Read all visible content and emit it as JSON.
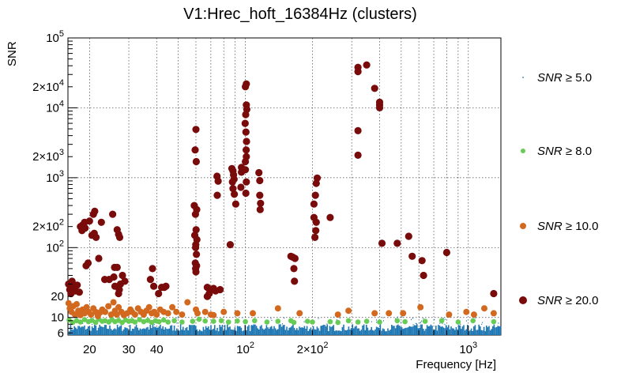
{
  "chart_data": {
    "type": "scatter",
    "title": "V1:Hrec_hoft_16384Hz (clusters)",
    "xlabel": "Frequency [Hz]",
    "ylabel": "SNR",
    "xscale": "log",
    "yscale": "log",
    "xlim": [
      16,
      1400
    ],
    "ylim": [
      5.6,
      100000
    ],
    "grid": true,
    "legend_position": "right",
    "x_tick_labels": [
      {
        "value": 20,
        "text": "20"
      },
      {
        "value": 30,
        "text": "30"
      },
      {
        "value": 40,
        "text": "40"
      },
      {
        "value": 100,
        "base": "10",
        "exp": "2"
      },
      {
        "value": 200,
        "coef": "2×10",
        "exp": "2"
      },
      {
        "value": 1000,
        "base": "10",
        "exp": "3"
      }
    ],
    "y_tick_labels": [
      {
        "value": 6,
        "text": "6"
      },
      {
        "value": 10,
        "text": "10"
      },
      {
        "value": 20,
        "text": "20"
      },
      {
        "value": 100,
        "base": "10",
        "exp": "2"
      },
      {
        "value": 200,
        "coef": "2×10",
        "exp": "2"
      },
      {
        "value": 1000,
        "base": "10",
        "exp": "3"
      },
      {
        "value": 2000,
        "coef": "2×10",
        "exp": "3"
      },
      {
        "value": 10000,
        "base": "10",
        "exp": "4"
      },
      {
        "value": 20000,
        "coef": "2×10",
        "exp": "4"
      },
      {
        "value": 100000,
        "base": "10",
        "exp": "5"
      }
    ],
    "series": [
      {
        "name": "SNR ≥ 5.0",
        "color": "#1f77b4",
        "marker": "dot",
        "x_range": [
          16,
          1400
        ],
        "y_range": [
          5.6,
          8.0
        ]
      },
      {
        "name": "SNR ≥ 8.0",
        "color": "#66cc55",
        "marker": "circle",
        "points": [
          [
            16.2,
            9.2
          ],
          [
            16.8,
            8.5
          ],
          [
            17.5,
            9.0
          ],
          [
            18.2,
            8.6
          ],
          [
            19.0,
            9.3
          ],
          [
            19.8,
            8.7
          ],
          [
            20.5,
            9.1
          ],
          [
            21.3,
            8.5
          ],
          [
            22.0,
            9.4
          ],
          [
            22.8,
            8.8
          ],
          [
            23.5,
            9.0
          ],
          [
            24.4,
            8.6
          ],
          [
            25.2,
            9.3
          ],
          [
            26.0,
            8.7
          ],
          [
            27.0,
            9.1
          ],
          [
            28.0,
            8.5
          ],
          [
            29.0,
            9.2
          ],
          [
            30.0,
            8.8
          ],
          [
            31.0,
            9.0
          ],
          [
            32.0,
            8.6
          ],
          [
            33.5,
            9.3
          ],
          [
            35.0,
            8.7
          ],
          [
            36.5,
            9.1
          ],
          [
            38.0,
            8.5
          ],
          [
            39.5,
            9.0
          ],
          [
            41.0,
            8.7
          ],
          [
            43.0,
            9.2
          ],
          [
            45.0,
            8.6
          ],
          [
            48.0,
            9.0
          ],
          [
            52.0,
            8.6
          ],
          [
            58.0,
            8.8
          ],
          [
            62.0,
            9.4
          ],
          [
            66.0,
            8.9
          ],
          [
            72.0,
            8.8
          ],
          [
            78.0,
            9.0
          ],
          [
            84.0,
            8.6
          ],
          [
            92.0,
            8.9
          ],
          [
            100.0,
            8.7
          ],
          [
            110.0,
            9.0
          ],
          [
            125.0,
            8.6
          ],
          [
            140.0,
            8.8
          ],
          [
            160.0,
            9.0
          ],
          [
            165.0,
            8.5
          ],
          [
            190.0,
            8.8
          ],
          [
            200.0,
            8.6
          ],
          [
            240.0,
            8.7
          ],
          [
            260.0,
            8.5
          ],
          [
            290.0,
            9.0
          ],
          [
            320.0,
            8.6
          ],
          [
            350.0,
            8.8
          ],
          [
            400.0,
            8.6
          ],
          [
            480.0,
            9.0
          ],
          [
            520.0,
            8.7
          ],
          [
            640.0,
            8.8
          ],
          [
            760.0,
            9.0
          ],
          [
            900.0,
            8.6
          ],
          [
            1050.0,
            9.0
          ],
          [
            1300.0,
            8.7
          ]
        ]
      },
      {
        "name": "SNR ≥ 10.0",
        "color": "#d2691e",
        "marker": "circle",
        "points": [
          [
            16.1,
            16.0
          ],
          [
            16.3,
            13.5
          ],
          [
            16.6,
            12.0
          ],
          [
            16.9,
            14.5
          ],
          [
            17.2,
            11.0
          ],
          [
            17.5,
            15.5
          ],
          [
            17.8,
            12.5
          ],
          [
            18.2,
            10.8
          ],
          [
            18.6,
            13.0
          ],
          [
            19.0,
            11.5
          ],
          [
            19.4,
            14.0
          ],
          [
            19.8,
            12.0
          ],
          [
            20.3,
            11.0
          ],
          [
            20.8,
            13.5
          ],
          [
            21.3,
            12.0
          ],
          [
            21.8,
            10.5
          ],
          [
            22.3,
            11.8
          ],
          [
            22.8,
            13.0
          ],
          [
            23.5,
            12.0
          ],
          [
            24.3,
            14.5
          ],
          [
            25.0,
            11.0
          ],
          [
            25.6,
            16.5
          ],
          [
            26.0,
            12.5
          ],
          [
            26.5,
            11.0
          ],
          [
            27.0,
            14.0
          ],
          [
            27.8,
            12.0
          ],
          [
            28.5,
            10.8
          ],
          [
            29.5,
            11.5
          ],
          [
            30.5,
            13.0
          ],
          [
            31.0,
            12.0
          ],
          [
            32.0,
            11.0
          ],
          [
            33.0,
            13.5
          ],
          [
            34.0,
            12.0
          ],
          [
            35.0,
            11.0
          ],
          [
            36.0,
            12.5
          ],
          [
            37.0,
            14.0
          ],
          [
            38.0,
            11.5
          ],
          [
            39.0,
            12.0
          ],
          [
            40.0,
            11.0
          ],
          [
            41.5,
            13.0
          ],
          [
            43.0,
            12.0
          ],
          [
            45.0,
            11.5
          ],
          [
            47.0,
            14.0
          ],
          [
            49.0,
            12.0
          ],
          [
            52.0,
            11.0
          ],
          [
            55.0,
            16.5
          ],
          [
            60.0,
            13.0
          ],
          [
            61.0,
            11.5
          ],
          [
            66.0,
            12.0
          ],
          [
            70.0,
            11.0
          ],
          [
            72.0,
            10.8
          ],
          [
            80.0,
            12.0
          ],
          [
            92.0,
            11.5
          ],
          [
            108.0,
            11.5
          ],
          [
            140.0,
            13.5
          ],
          [
            175.0,
            11.5
          ],
          [
            260.0,
            11.0
          ],
          [
            290.0,
            12.5
          ],
          [
            380.0,
            11.5
          ],
          [
            440.0,
            11.5
          ],
          [
            510.0,
            11.5
          ],
          [
            610.0,
            14.0
          ],
          [
            820.0,
            11.0
          ],
          [
            980.0,
            12.0
          ],
          [
            1060.0,
            11.0
          ],
          [
            1180.0,
            13.5
          ],
          [
            1300.0,
            11.5
          ]
        ]
      },
      {
        "name": "SNR ≥ 20.0",
        "color": "#7a0b0b",
        "marker": "circle",
        "points": [
          [
            16.1,
            30.0
          ],
          [
            16.3,
            25.0
          ],
          [
            16.5,
            22.0
          ],
          [
            16.7,
            33.0
          ],
          [
            17.0,
            27.0
          ],
          [
            17.3,
            24.0
          ],
          [
            17.6,
            29.0
          ],
          [
            18.0,
            23.0
          ],
          [
            18.2,
            200.0
          ],
          [
            18.6,
            210.0
          ],
          [
            19.0,
            230.0
          ],
          [
            18.5,
            175.0
          ],
          [
            19.1,
            190.0
          ],
          [
            20.0,
            240.0
          ],
          [
            20.8,
            300.0
          ],
          [
            21.1,
            330.0
          ],
          [
            21.0,
            160.0
          ],
          [
            20.5,
            150.0
          ],
          [
            21.4,
            140.0
          ],
          [
            22.6,
            230.0
          ],
          [
            25.4,
            300.0
          ],
          [
            27.0,
            155.0
          ],
          [
            26.6,
            180.0
          ],
          [
            27.3,
            140.0
          ],
          [
            19.7,
            60.0
          ],
          [
            19.3,
            55.0
          ],
          [
            22.0,
            70.0
          ],
          [
            23.4,
            35.0
          ],
          [
            24.5,
            35.0
          ],
          [
            25.7,
            38.0
          ],
          [
            25.9,
            52.0
          ],
          [
            26.6,
            52.0
          ],
          [
            27.2,
            25.0
          ],
          [
            27.5,
            30.0
          ],
          [
            28.1,
            40.0
          ],
          [
            28.8,
            33.0
          ],
          [
            26.0,
            28.0
          ],
          [
            27.0,
            22.0
          ],
          [
            37.5,
            35.0
          ],
          [
            38.3,
            50.0
          ],
          [
            38.8,
            28.0
          ],
          [
            40.8,
            22.0
          ],
          [
            42.1,
            27.0
          ],
          [
            43.3,
            27.0
          ],
          [
            44.0,
            28.0
          ],
          [
            60.0,
            4900.0
          ],
          [
            59.5,
            2500.0
          ],
          [
            60.2,
            1700.0
          ],
          [
            59.0,
            400.0
          ],
          [
            60.5,
            350.0
          ],
          [
            59.7,
            300.0
          ],
          [
            60.1,
            180.0
          ],
          [
            59.3,
            150.0
          ],
          [
            60.6,
            130.0
          ],
          [
            59.9,
            110.0
          ],
          [
            59.8,
            100.0
          ],
          [
            60.3,
            80.0
          ],
          [
            59.6,
            60.0
          ],
          [
            60.4,
            55.0
          ],
          [
            59.8,
            50.0
          ],
          [
            60.0,
            45.0
          ],
          [
            70.0,
            25.0
          ],
          [
            68.8,
            22.0
          ],
          [
            67.5,
            20.0
          ],
          [
            67.5,
            27.0
          ],
          [
            72.0,
            26.0
          ],
          [
            73.5,
            24.0
          ],
          [
            74.6,
            1050.0
          ],
          [
            75.5,
            890.0
          ],
          [
            74.8,
            560.0
          ],
          [
            77.0,
            25.0
          ],
          [
            85.5,
            110.0
          ],
          [
            87.0,
            1350.0
          ],
          [
            88.0,
            1250.0
          ],
          [
            88.5,
            1100.0
          ],
          [
            89.0,
            950.0
          ],
          [
            87.5,
            870.0
          ],
          [
            88.0,
            700.0
          ],
          [
            89.2,
            580.0
          ],
          [
            90.5,
            420.0
          ],
          [
            96.0,
            1400.0
          ],
          [
            96.0,
            1200.0
          ],
          [
            95.5,
            730.0
          ],
          [
            101.0,
            22000.0
          ],
          [
            100.0,
            20000.0
          ],
          [
            101.0,
            11000.0
          ],
          [
            101.5,
            9500.0
          ],
          [
            100.3,
            8000.0
          ],
          [
            99.8,
            6000.0
          ],
          [
            100.6,
            4500.0
          ],
          [
            101.2,
            3300.0
          ],
          [
            100.8,
            2500.0
          ],
          [
            101.0,
            2000.0
          ],
          [
            100.0,
            1700.0
          ],
          [
            100.0,
            1300.0
          ],
          [
            101.0,
            870.0
          ],
          [
            100.5,
            600.0
          ],
          [
            115.0,
            1180.0
          ],
          [
            116.0,
            910.0
          ],
          [
            116.0,
            560.0
          ],
          [
            117.0,
            430.0
          ],
          [
            116.5,
            350.0
          ],
          [
            160.0,
            75.0
          ],
          [
            163.0,
            73.0
          ],
          [
            167.0,
            70.0
          ],
          [
            165.0,
            50.0
          ],
          [
            166.0,
            33.0
          ],
          [
            210.0,
            990.0
          ],
          [
            208.0,
            830.0
          ],
          [
            206.0,
            560.0
          ],
          [
            203.0,
            420.0
          ],
          [
            203.0,
            270.0
          ],
          [
            208.0,
            230.0
          ],
          [
            207.0,
            175.0
          ],
          [
            205.0,
            140.0
          ],
          [
            240.0,
            270.0
          ],
          [
            320.0,
            38000.0
          ],
          [
            350.0,
            41000.0
          ],
          [
            320.0,
            33000.0
          ],
          [
            380.0,
            19000.0
          ],
          [
            400.0,
            11000.0
          ],
          [
            400.0,
            12000.0
          ],
          [
            400.0,
            10000.0
          ],
          [
            320.0,
            4700.0
          ],
          [
            320.0,
            2100.0
          ],
          [
            410.0,
            115.0
          ],
          [
            480.0,
            115.0
          ],
          [
            540.0,
            145.0
          ],
          [
            560.0,
            75.0
          ],
          [
            620.0,
            65.0
          ],
          [
            630.0,
            40.0
          ],
          [
            800.0,
            85.0
          ],
          [
            1300.0,
            22.0
          ]
        ]
      }
    ]
  }
}
